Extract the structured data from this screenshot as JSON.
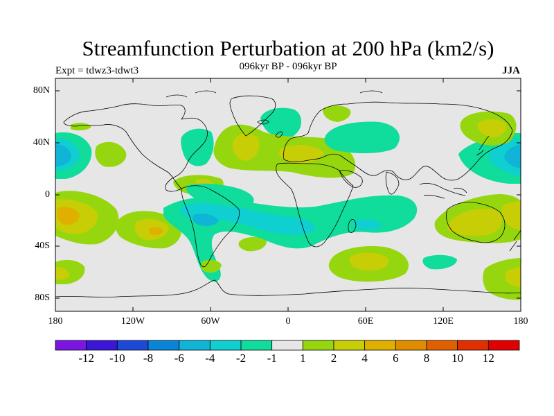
{
  "title": "Streamfunction Perturbation at 200 hPa (km2/s)",
  "subtitle": "096kyr BP - 096kyr BP",
  "left_label": "Expt = tdwz3-tdwt3",
  "right_label": "JJA",
  "lat_labels": [
    "80N",
    "40N",
    "0",
    "40S",
    "80S"
  ],
  "lon_labels": [
    "180",
    "120W",
    "60W",
    "0",
    "60E",
    "120E",
    "180"
  ],
  "colorbar": {
    "colors": [
      "#7b16e2",
      "#3b16d6",
      "#1c49d6",
      "#0a84d9",
      "#10b4d6",
      "#10cfd0",
      "#10dc9c",
      "#e6e6e6",
      "#96d60e",
      "#c8ce05",
      "#e0b000",
      "#e08c00",
      "#e06000",
      "#e03000",
      "#e00000"
    ],
    "labels": [
      "-12",
      "-10",
      "-8",
      "-6",
      "-4",
      "-2",
      "-1",
      "1",
      "2",
      "4",
      "6",
      "8",
      "10",
      "12"
    ]
  },
  "colors": {
    "land_fill": "#e6e6e6",
    "coast": "#000000"
  }
}
